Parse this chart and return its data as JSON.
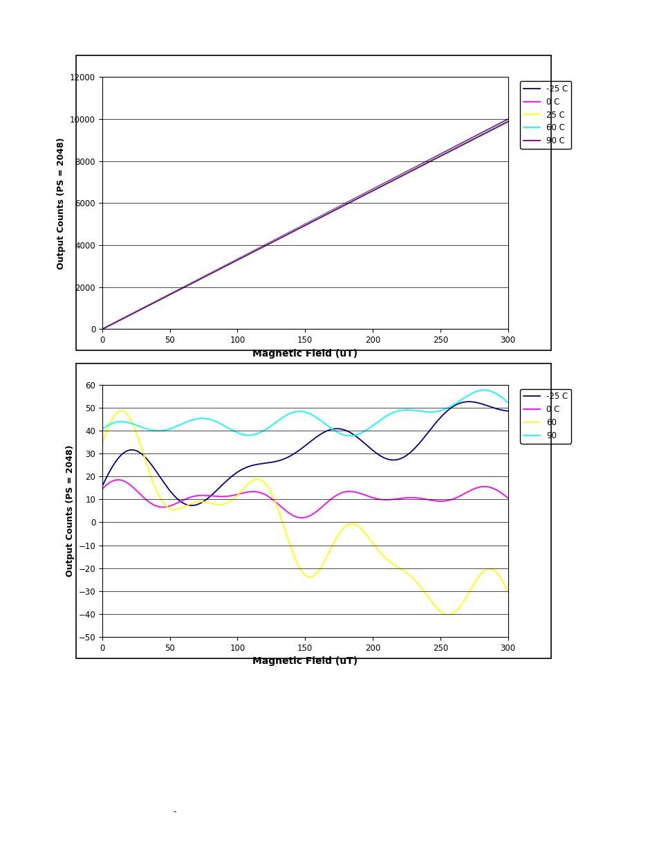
{
  "top_chart": {
    "xlabel": "Magnetic Field (uT)",
    "ylabel": "Output Counts (PS = 2048)",
    "xlim": [
      0,
      300
    ],
    "ylim": [
      0,
      12000
    ],
    "yticks": [
      0,
      2000,
      4000,
      6000,
      8000,
      10000,
      12000
    ],
    "xticks": [
      0,
      50,
      100,
      150,
      200,
      250,
      300
    ],
    "legend": [
      "-25 C",
      "0 C",
      "25 C",
      "60 C",
      "90 C"
    ],
    "colors": [
      "#00008B",
      "#FF00FF",
      "#FFFF00",
      "#00FFFF",
      "#800080"
    ],
    "slopes": [
      33.3,
      33.2,
      33.1,
      33.0,
      32.9
    ],
    "offsets": [
      0,
      0,
      0,
      0,
      0
    ]
  },
  "bottom_chart": {
    "xlabel": "Magnetic Field (uT)",
    "ylabel": "Output Counts (PS = 2048)",
    "xlim": [
      0,
      300
    ],
    "ylim": [
      -50,
      60
    ],
    "yticks": [
      -50,
      -40,
      -30,
      -20,
      -10,
      0,
      10,
      20,
      30,
      40,
      50,
      60
    ],
    "xticks": [
      0,
      50,
      100,
      150,
      200,
      250,
      300
    ],
    "legend": [
      "-25 C",
      "0 C",
      "60",
      "90"
    ],
    "colors": [
      "#00008B",
      "#FF00FF",
      "#FFFF00",
      "#00FFFF"
    ]
  },
  "fig_width": 9.54,
  "fig_height": 12.35,
  "dpi": 100
}
